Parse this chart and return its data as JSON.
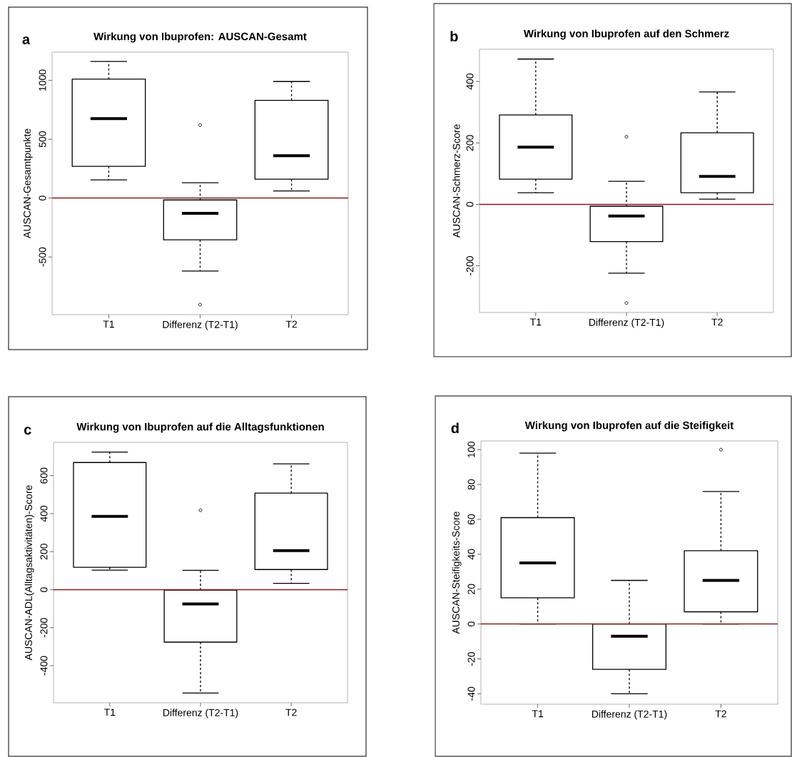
{
  "chart_data": [
    {
      "type": "box",
      "title": "Wirkung von Ibuprofen: AUSCAN-Gesamt",
      "annotations": [
        "a"
      ],
      "ylabel": "AUSCAN-Gesamtpunkte",
      "categories": [
        "T1",
        "Differenz (T2-T1)",
        "T2"
      ],
      "boxes": [
        {
          "low": 155,
          "q1": 270,
          "median": 675,
          "q3": 1010,
          "high": 1160
        },
        {
          "low": -620,
          "q1": -355,
          "median": -130,
          "q3": -16,
          "high": 130,
          "outliers": [
            620,
            -905
          ]
        },
        {
          "low": 60,
          "q1": 160,
          "median": 360,
          "q3": 830,
          "high": 990
        }
      ],
      "color": "#000000",
      "ylim": [
        -990,
        1240
      ],
      "yticks": [
        -500,
        0,
        500,
        1000
      ],
      "ref_lines": [
        {
          "axis": "y",
          "value": 0,
          "color": "#8b1a1a"
        }
      ]
    },
    {
      "type": "box",
      "title": "Wirkung von Ibuprofen auf den Schmerz",
      "annotations": [
        "b"
      ],
      "ylabel": "AUSCAN-Schmerz-Score",
      "categories": [
        "T1",
        "Differenz (T2-T1)",
        "T2"
      ],
      "boxes": [
        {
          "low": 38,
          "q1": 82,
          "median": 186,
          "q3": 291,
          "high": 473
        },
        {
          "low": -224,
          "q1": -121,
          "median": -38,
          "q3": -6,
          "high": 75,
          "outliers": [
            220,
            -321
          ]
        },
        {
          "low": 17,
          "q1": 38,
          "median": 91,
          "q3": 233,
          "high": 366
        }
      ],
      "color": "#000000",
      "ylim": [
        -352,
        505
      ],
      "yticks": [
        -200,
        0,
        200,
        400
      ],
      "ref_lines": [
        {
          "axis": "y",
          "value": 0,
          "color": "#8b1a1a"
        }
      ]
    },
    {
      "type": "box",
      "title": "Wirkung von Ibuprofen auf die Alltagsfunktionen",
      "annotations": [
        "c"
      ],
      "ylabel": "AUSCAN-ADL(Alltagsaktivitäten)-Score",
      "categories": [
        "T1",
        "Differenz (T2-T1)",
        "T2"
      ],
      "boxes": [
        {
          "low": 103,
          "q1": 118,
          "median": 386,
          "q3": 669,
          "high": 724
        },
        {
          "low": -544,
          "q1": -276,
          "median": -75,
          "q3": -2,
          "high": 102,
          "outliers": [
            418
          ]
        },
        {
          "low": 33,
          "q1": 106,
          "median": 205,
          "q3": 508,
          "high": 662
        }
      ],
      "color": "#000000",
      "ylim": [
        -595,
        775
      ],
      "yticks": [
        -400,
        -200,
        0,
        200,
        400,
        600
      ],
      "ref_lines": [
        {
          "axis": "y",
          "value": 0,
          "color": "#8b1a1a"
        }
      ]
    },
    {
      "type": "box",
      "title": "Wirkung von Ibuprofen auf die Steifigkeit",
      "annotations": [
        "d"
      ],
      "ylabel": "AUSCAN-Steifigkeits-Score",
      "categories": [
        "T1",
        "Differenz (T2-T1)",
        "T2"
      ],
      "boxes": [
        {
          "low": 0,
          "q1": 15,
          "median": 35,
          "q3": 61,
          "high": 98
        },
        {
          "low": -40,
          "q1": -26,
          "median": -7,
          "q3": 0,
          "high": 25
        },
        {
          "low": 0,
          "q1": 7,
          "median": 25,
          "q3": 42,
          "high": 76,
          "outliers": [
            100
          ]
        }
      ],
      "color": "#000000",
      "ylim": [
        -46,
        105
      ],
      "yticks": [
        -40,
        -20,
        0,
        20,
        40,
        60,
        80,
        100
      ],
      "ref_lines": [
        {
          "axis": "y",
          "value": 0,
          "color": "#8b1a1a"
        }
      ]
    }
  ]
}
